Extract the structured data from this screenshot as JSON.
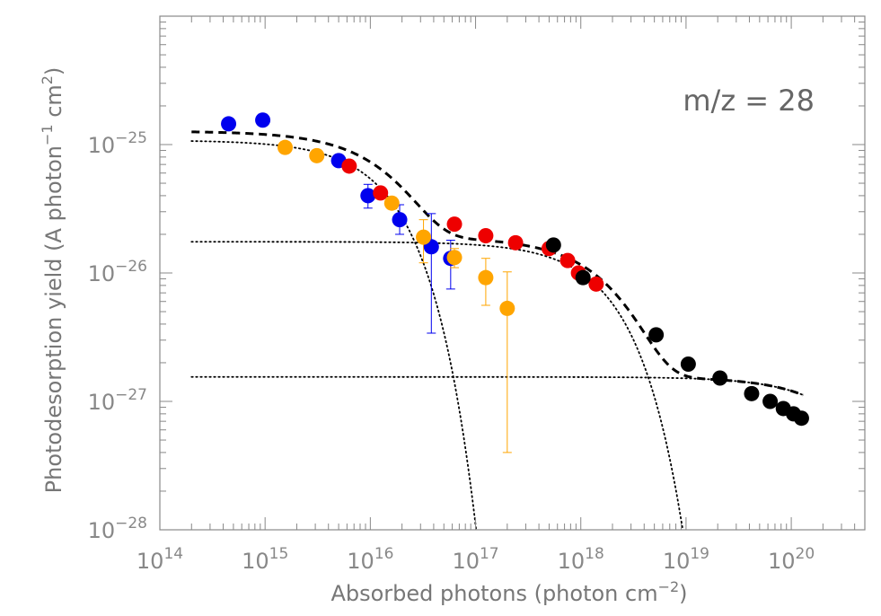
{
  "chart_data": {
    "type": "scatter",
    "title": "",
    "x_scale": "log",
    "y_scale": "log",
    "xlim": [
      100000000000000.0,
      5e+20
    ],
    "ylim": [
      1e-28,
      1e-24
    ],
    "x_ticks": [
      {
        "value": 100000000000000.0,
        "base": "10",
        "exp": "14"
      },
      {
        "value": 1000000000000000.0,
        "base": "10",
        "exp": "15"
      },
      {
        "value": 1e+16,
        "base": "10",
        "exp": "16"
      },
      {
        "value": 1e+17,
        "base": "10",
        "exp": "17"
      },
      {
        "value": 1e+18,
        "base": "10",
        "exp": "18"
      },
      {
        "value": 1e+19,
        "base": "10",
        "exp": "19"
      },
      {
        "value": 1e+20,
        "base": "10",
        "exp": "20"
      }
    ],
    "y_ticks": [
      {
        "value": 1e-28,
        "base": "10",
        "exp": "−28"
      },
      {
        "value": 1e-27,
        "base": "10",
        "exp": "−27"
      },
      {
        "value": 1e-26,
        "base": "10",
        "exp": "−26"
      },
      {
        "value": 1e-25,
        "base": "10",
        "exp": "−25"
      }
    ],
    "xlabel": {
      "main": "Absorbed photons (photon cm",
      "sup": "−2",
      "end": ")"
    },
    "ylabel": {
      "main": "Photodesorption yield (A photon",
      "sup1": "−1",
      "mid": " cm",
      "sup2": "2",
      "end": ")"
    },
    "annotation": "m/z = 28",
    "grid": false,
    "series": [
      {
        "color": "#0000ee",
        "points": [
          {
            "x": 450000000000000.0,
            "y": 1.45e-25
          },
          {
            "x": 950000000000000.0,
            "y": 1.55e-25
          },
          {
            "x": 5000000000000000.0,
            "y": 7.5e-26
          },
          {
            "x": 9500000000000000.0,
            "y": 4e-26,
            "ylo": 3.2e-26,
            "yhi": 4.9e-26
          },
          {
            "x": 1.9e+16,
            "y": 2.6e-26,
            "ylo": 2e-26,
            "yhi": 3.4e-26
          },
          {
            "x": 3.8e+16,
            "y": 1.6e-26,
            "ylo": 3.4e-27,
            "yhi": 2.9e-26
          },
          {
            "x": 5.8e+16,
            "y": 1.3e-26,
            "ylo": 7.5e-27,
            "yhi": 1.8e-26
          }
        ]
      },
      {
        "color": "#ee0000",
        "points": [
          {
            "x": 6300000000000000.0,
            "y": 6.8e-26
          },
          {
            "x": 1.25e+16,
            "y": 4.2e-26
          },
          {
            "x": 6.3e+16,
            "y": 2.4e-26
          },
          {
            "x": 1.25e+17,
            "y": 1.95e-26
          },
          {
            "x": 2.4e+17,
            "y": 1.72e-26
          },
          {
            "x": 5e+17,
            "y": 1.55e-26
          },
          {
            "x": 7.5e+17,
            "y": 1.25e-26
          },
          {
            "x": 9.5e+17,
            "y": 1e-26
          },
          {
            "x": 1.4e+18,
            "y": 8.2e-27
          }
        ]
      },
      {
        "color": "#ffa500",
        "points": [
          {
            "x": 1550000000000000.0,
            "y": 9.5e-26
          },
          {
            "x": 3100000000000000.0,
            "y": 8.2e-26
          },
          {
            "x": 1.6e+16,
            "y": 3.5e-26
          },
          {
            "x": 3.2e+16,
            "y": 1.9e-26,
            "ylo": 1.2e-26,
            "yhi": 2.6e-26
          },
          {
            "x": 6.3e+16,
            "y": 1.32e-26,
            "ylo": 1.1e-26,
            "yhi": 1.55e-26
          },
          {
            "x": 1.25e+17,
            "y": 9.2e-27,
            "ylo": 5.6e-27,
            "yhi": 1.3e-26
          },
          {
            "x": 2e+17,
            "y": 5.3e-27,
            "ylo": 4e-28,
            "yhi": 1.02e-26
          }
        ]
      },
      {
        "color": "#000000",
        "points": [
          {
            "x": 5.5e+17,
            "y": 1.65e-26
          },
          {
            "x": 1.05e+18,
            "y": 9.2e-27
          },
          {
            "x": 5.2e+18,
            "y": 3.3e-27
          },
          {
            "x": 1.05e+19,
            "y": 1.95e-27
          },
          {
            "x": 2.1e+19,
            "y": 1.52e-27
          },
          {
            "x": 4.2e+19,
            "y": 1.15e-27
          },
          {
            "x": 6.3e+19,
            "y": 1e-27
          },
          {
            "x": 8.4e+19,
            "y": 8.8e-28
          },
          {
            "x": 1.05e+20,
            "y": 8e-28
          },
          {
            "x": 1.25e+20,
            "y": 7.4e-28
          }
        ]
      }
    ],
    "fit_components": {
      "style": "dotted",
      "range": [
        200000000000000.0,
        1.3e+20
      ],
      "exponentials": [
        {
          "amplitude": 1.08e-25,
          "scale": 1.45e+16
        },
        {
          "amplitude": 1.75e-26,
          "scale": 1.8e+18
        },
        {
          "amplitude": 1.55e-27,
          "scale": 4e+20
        }
      ]
    },
    "total_fit": {
      "style": "dashed",
      "range": [
        200000000000000.0,
        1.3e+20
      ]
    }
  }
}
